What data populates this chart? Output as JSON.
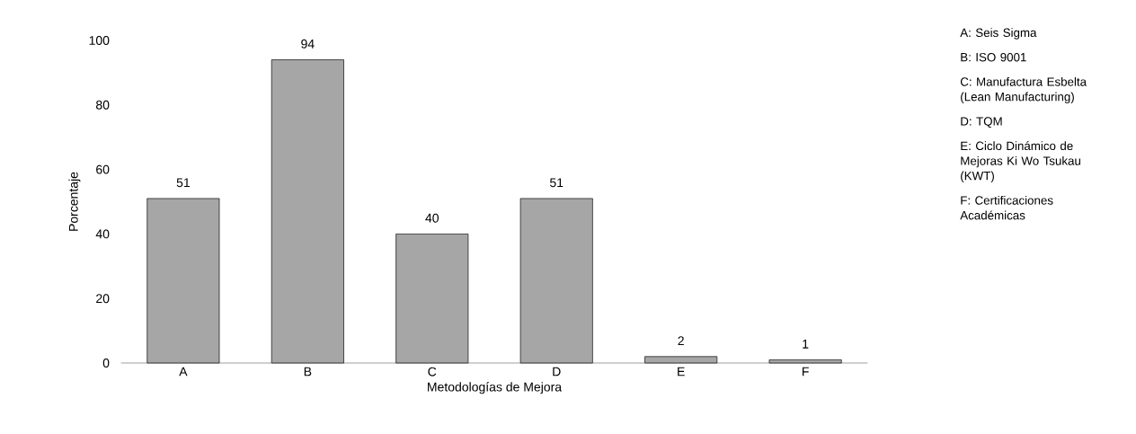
{
  "chart_data": {
    "type": "bar",
    "xlabel": "Metodologías de Mejora",
    "ylabel": "Porcentaje",
    "categories": [
      "A",
      "B",
      "C",
      "D",
      "E",
      "F"
    ],
    "values": [
      51,
      94,
      40,
      51,
      2,
      1
    ],
    "color": "#a6a6a6",
    "ylim": [
      0,
      100
    ],
    "yticks": [
      0,
      20,
      40,
      60,
      80,
      100
    ],
    "data_labels": true,
    "grid": false,
    "annotations": [
      "A: Seis Sigma",
      "B: ISO 9001",
      "C: Manufactura Esbelta (Lean Manufacturing)",
      "D: TQM",
      "E: Ciclo Dinámico de Mejoras Ki Wo Tsukau (KWT)",
      "F: Certificaciones Académicas"
    ]
  }
}
